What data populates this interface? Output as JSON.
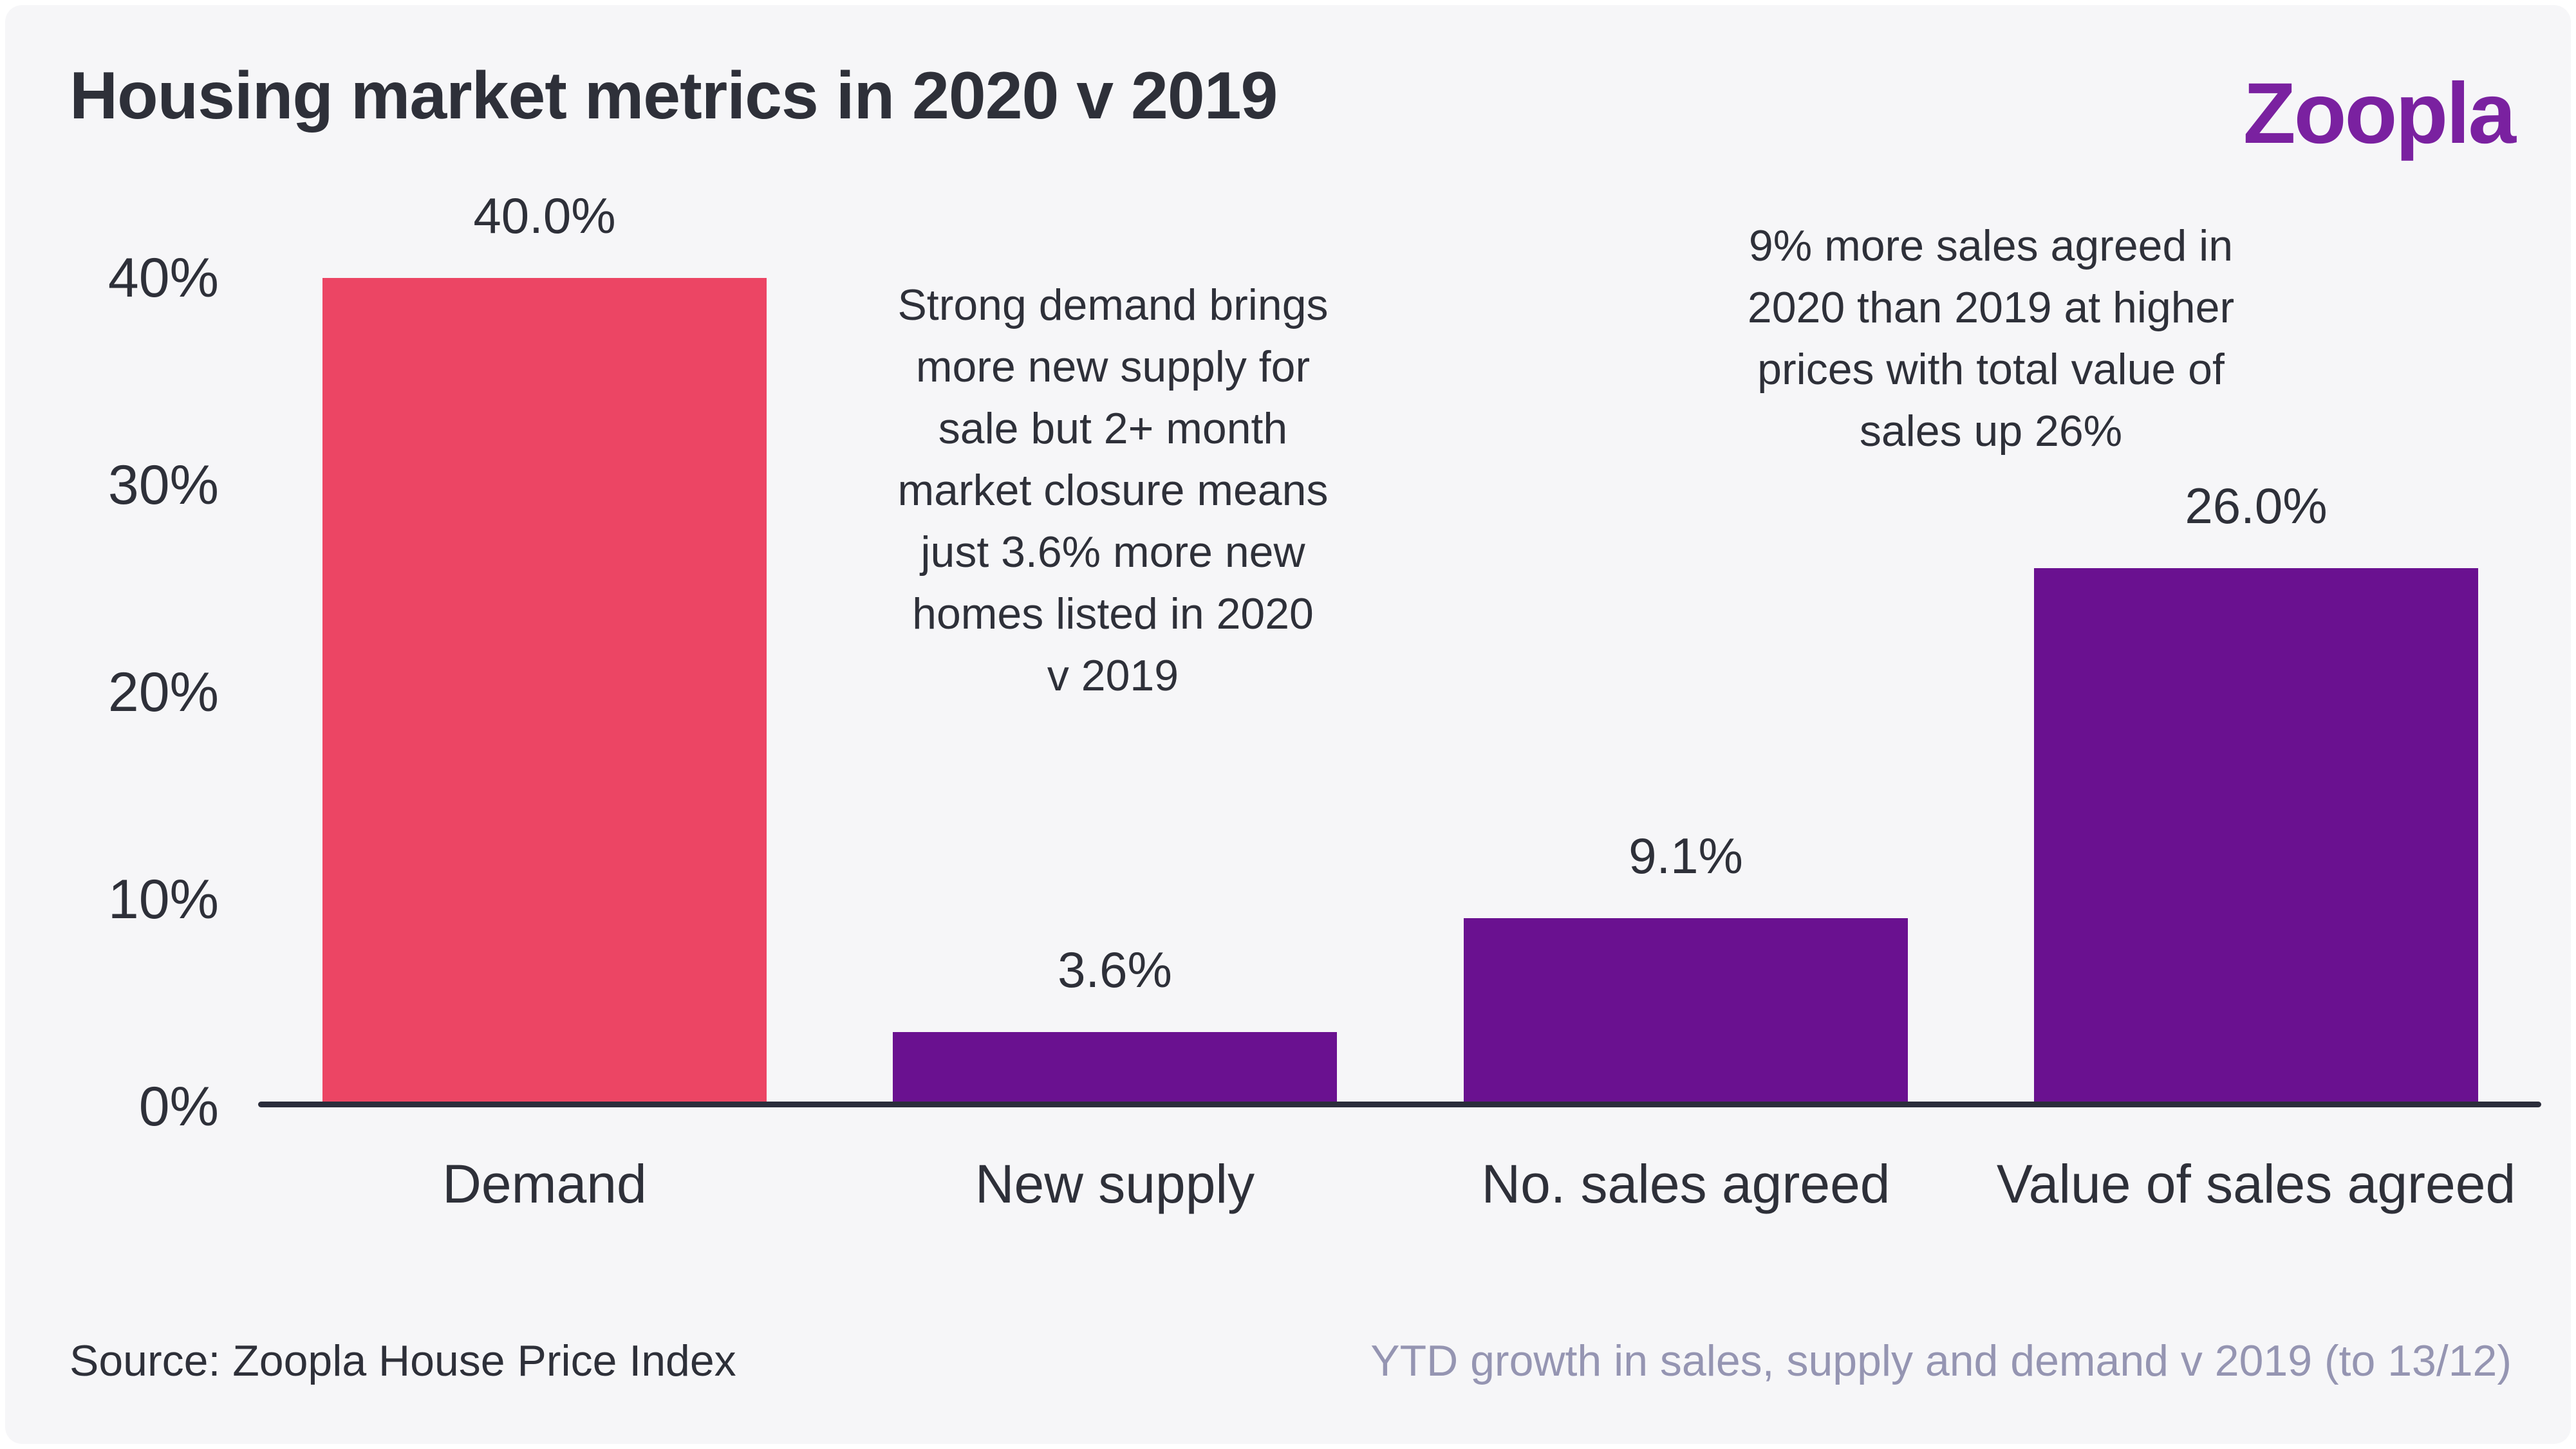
{
  "title": "Housing market metrics in 2020 v 2019",
  "logo_text": "Zoopla",
  "colors": {
    "pink": "#EC4564",
    "purple": "#6A1190",
    "dark": "#2E3039",
    "muted": "#9595B2",
    "background": "#F6F6F8",
    "logo_purple": "#7A21A0",
    "axis": "#2B2D3B"
  },
  "chart_data": {
    "type": "bar",
    "title": "Housing market metrics in 2020 v 2019",
    "categories": [
      "Demand",
      "New supply",
      "No. sales agreed",
      "Value of sales agreed"
    ],
    "values": [
      40.0,
      3.6,
      9.1,
      26.0
    ],
    "value_labels": [
      "40.0%",
      "3.6%",
      "9.1%",
      "26.0%"
    ],
    "bar_colors": [
      "pink",
      "purple",
      "purple",
      "purple"
    ],
    "yticks": [
      {
        "label": "0%",
        "value": 0
      },
      {
        "label": "10%",
        "value": 10
      },
      {
        "label": "20%",
        "value": 20
      },
      {
        "label": "30%",
        "value": 30
      },
      {
        "label": "40%",
        "value": 40
      }
    ],
    "ylim": [
      0,
      42
    ],
    "xlabel": "",
    "ylabel": "",
    "grid": false,
    "legend": false
  },
  "annotations": [
    {
      "text": "Strong demand brings\nmore new supply for\nsale but 2+ month\nmarket closure means\njust 3.6% more new\nhomes listed in 2020\nv 2019"
    },
    {
      "text": "9% more sales agreed in\n2020 than 2019 at higher\nprices with total value of\nsales up 26%"
    }
  ],
  "footer": {
    "source": "Source: Zoopla House Price Index",
    "note": "YTD growth in sales, supply and demand v 2019 (to 13/12)"
  }
}
